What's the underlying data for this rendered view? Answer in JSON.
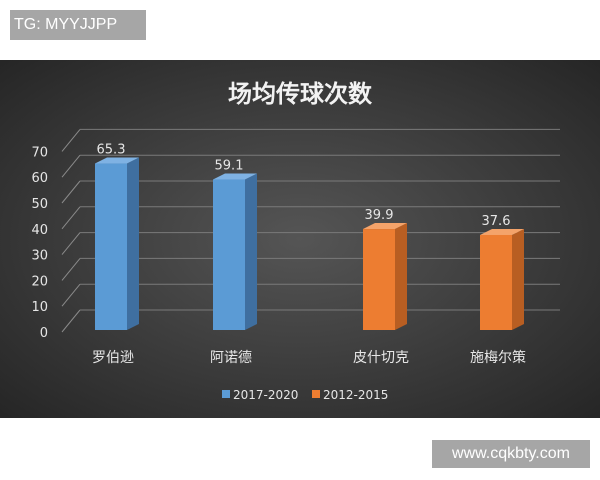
{
  "watermark_top": "TG: MYYJJPP",
  "watermark_bottom": "www.cqkbty.com",
  "chart_data": {
    "type": "bar",
    "title": "场均传球次数",
    "categories": [
      "罗伯逊",
      "阿诺德",
      "皮什切克",
      "施梅尔策"
    ],
    "series": [
      {
        "name": "2017-2020",
        "color": "#5b9bd5",
        "values": [
          65.3,
          59.1,
          null,
          null
        ]
      },
      {
        "name": "2012-2015",
        "color": "#ed7d31",
        "values": [
          null,
          null,
          39.9,
          37.6
        ]
      }
    ],
    "data_labels": [
      "65.3",
      "59.1",
      "39.9",
      "37.6"
    ],
    "ylim": [
      0,
      70
    ],
    "yticks": [
      "0",
      "10",
      "20",
      "30",
      "40",
      "50",
      "60",
      "70"
    ],
    "grid": true,
    "legend": "bottom",
    "style": "3d"
  }
}
